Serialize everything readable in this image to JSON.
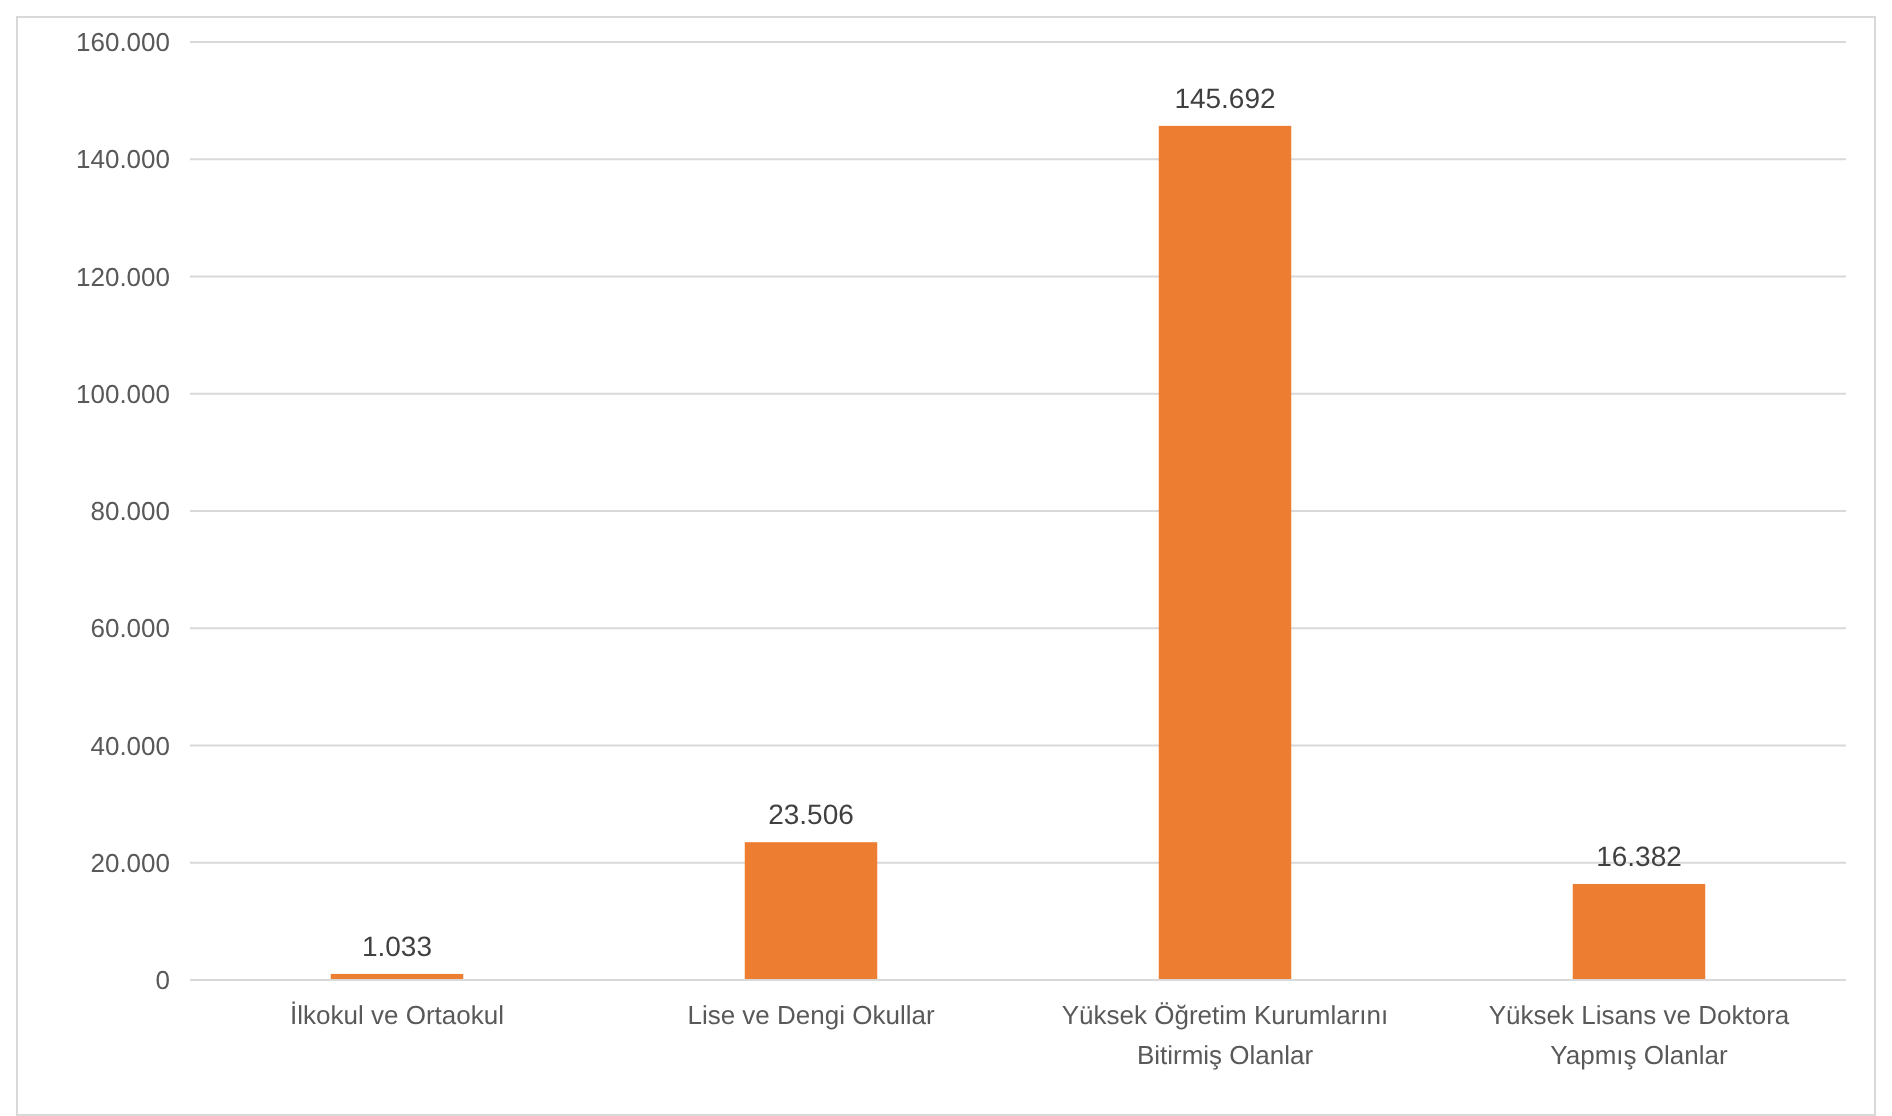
{
  "chart_data": {
    "type": "bar",
    "categories": [
      "İlkokul ve Ortaokul",
      "Lise ve Dengi Okullar",
      "Yüksek Öğretim Kurumlarını Bitirmiş Olanlar",
      "Yüksek Lisans ve Doktora Yapmış Olanlar"
    ],
    "values": [
      1033,
      23506,
      145692,
      16382
    ],
    "value_labels": [
      "1.033",
      "23.506",
      "145.692",
      "16.382"
    ],
    "color": "#ed7d31",
    "ylim": [
      0,
      160000
    ],
    "yticks": [
      0,
      {
        "value": 20000,
        "label": "20.000"
      },
      {
        "value": 40000,
        "label": "40.000"
      },
      {
        "value": 60000,
        "label": "60.000"
      },
      {
        "value": 80000,
        "label": "80.000"
      },
      {
        "value": 100000,
        "label": "100.000"
      },
      {
        "value": 120000,
        "label": "120.000"
      },
      {
        "value": 140000,
        "label": "140.000"
      },
      {
        "value": 160000,
        "label": "160.000"
      }
    ],
    "grid": "y"
  }
}
